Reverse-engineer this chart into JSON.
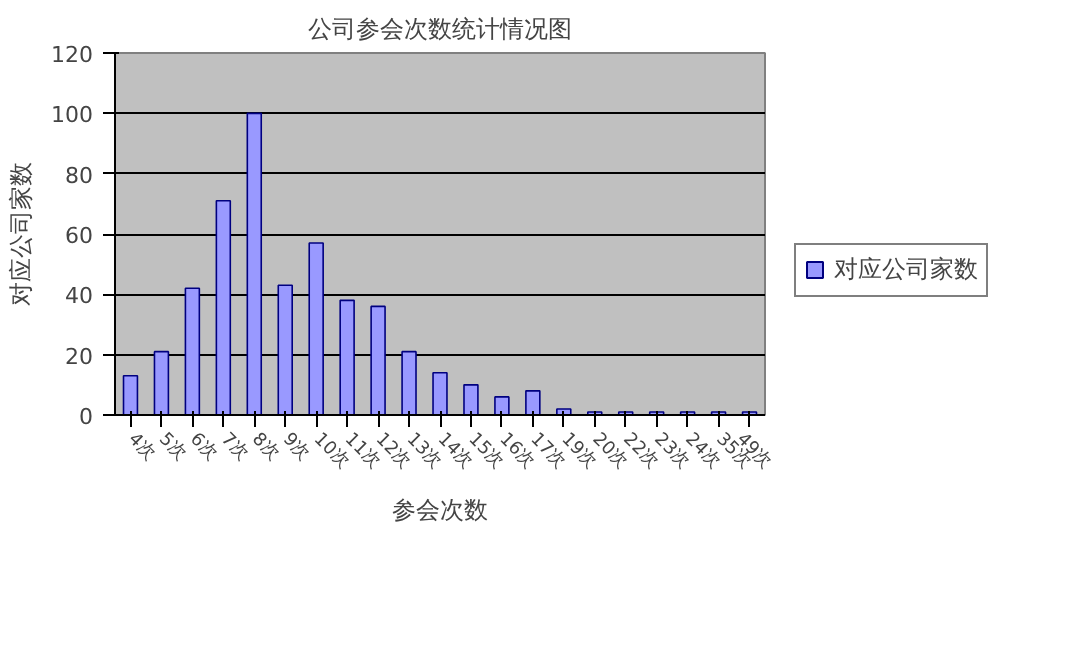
{
  "chart_data": {
    "type": "bar",
    "title": "公司参会次数统计情况图",
    "xlabel": "参会次数",
    "ylabel": "对应公司家数",
    "categories": [
      "4次",
      "5次",
      "6次",
      "7次",
      "8次",
      "9次",
      "10次",
      "11次",
      "12次",
      "13次",
      "14次",
      "15次",
      "16次",
      "17次",
      "19次",
      "20次",
      "22次",
      "23次",
      "24次",
      "35次",
      "49次"
    ],
    "series": [
      {
        "name": "对应公司家数",
        "color": "#9999ff",
        "values": [
          13,
          21,
          42,
          71,
          100,
          43,
          57,
          38,
          36,
          21,
          14,
          10,
          6,
          8,
          2,
          1,
          1,
          1,
          1,
          1,
          1
        ]
      }
    ],
    "ylim": [
      0,
      120
    ],
    "yticks": [
      0,
      20,
      40,
      60,
      80,
      100,
      120
    ],
    "grid": "y",
    "legend": "right"
  }
}
